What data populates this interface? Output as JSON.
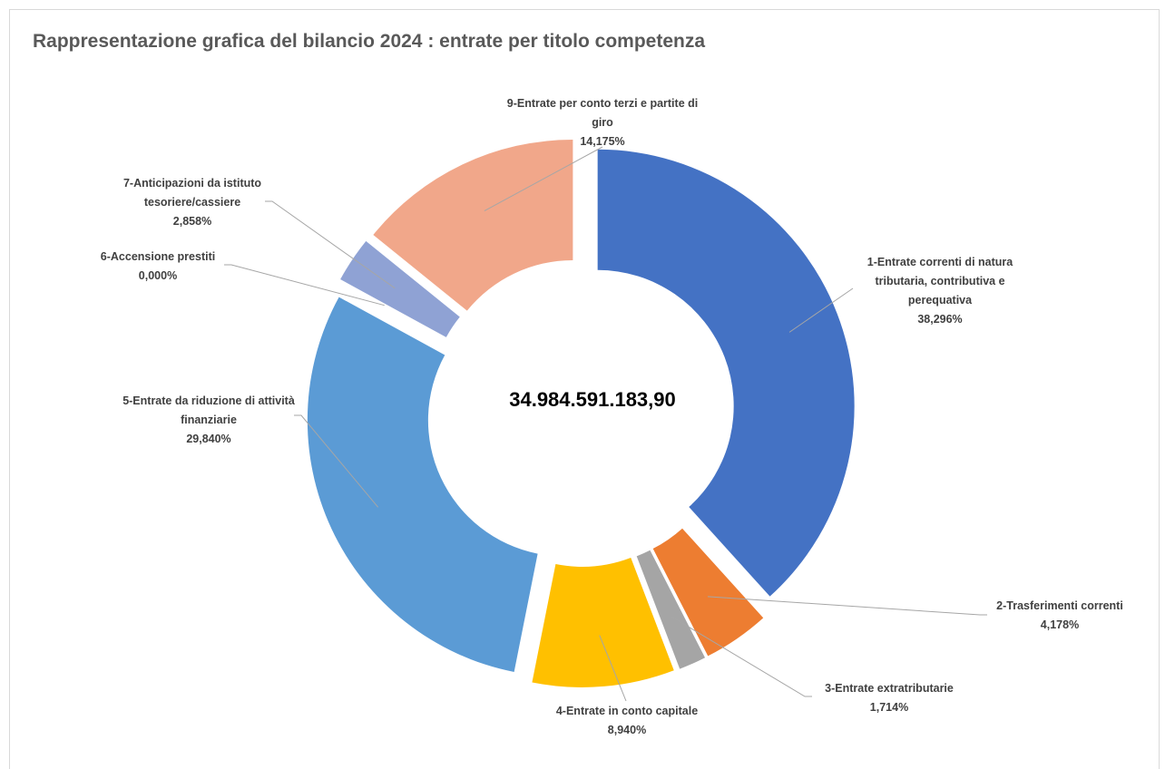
{
  "chart_data": {
    "type": "pie",
    "title": "Rappresentazione grafica del bilancio 2024 : entrate per titolo competenza",
    "center_label": "34.984.591.183,90",
    "legend": "none",
    "slices": [
      {
        "name": "1-Entrate correnti di natura tributaria, contributiva e perequativa",
        "value": 38.296,
        "label": "38,296%",
        "color": "#4472C4"
      },
      {
        "name": "2-Trasferimenti correnti",
        "value": 4.178,
        "label": "4,178%",
        "color": "#ED7D31"
      },
      {
        "name": "3-Entrate extratributarie",
        "value": 1.714,
        "label": "1,714%",
        "color": "#A5A5A5"
      },
      {
        "name": "4-Entrate in conto capitale",
        "value": 8.94,
        "label": "8,940%",
        "color": "#FFC000"
      },
      {
        "name": "5-Entrate da riduzione di attività finanziarie",
        "value": 29.84,
        "label": "29,840%",
        "color": "#5B9BD5"
      },
      {
        "name": "6-Accensione prestiti",
        "value": 0.0,
        "label": "0,000%",
        "color": "#70AD47"
      },
      {
        "name": "7-Anticipazioni da istituto tesoriere/cassiere",
        "value": 2.858,
        "label": "2,858%",
        "color": "#8FA2D4"
      },
      {
        "name": "9-Entrate per conto terzi e partite di giro",
        "value": 14.175,
        "label": "14,175%",
        "color": "#F1A78A"
      }
    ]
  }
}
